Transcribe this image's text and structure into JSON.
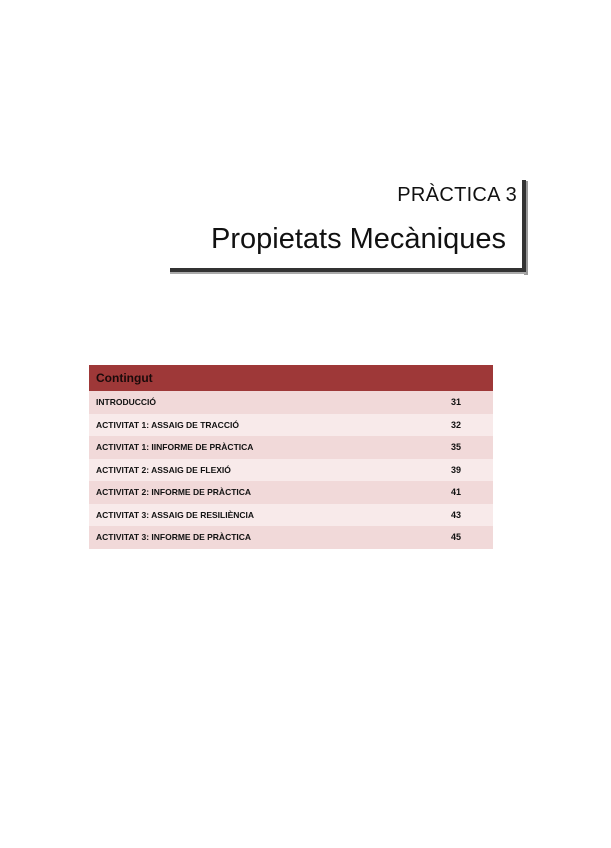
{
  "header": {
    "subtitle": "PRÀCTICA 3",
    "title": "Propietats Mecàniques"
  },
  "toc": {
    "heading": "Contingut",
    "entries": [
      {
        "label": "INTRODUCCIÓ",
        "page": "31"
      },
      {
        "label": "ACTIVITAT 1: ASSAIG DE TRACCIÓ",
        "page": "32"
      },
      {
        "label": "ACTIVITAT 1: IINFORME DE PRÀCTICA",
        "page": "35"
      },
      {
        "label": "ACTIVITAT 2: ASSAIG DE FLEXIÓ",
        "page": "39"
      },
      {
        "label": "ACTIVITAT 2: INFORME DE PRÀCTICA",
        "page": "41"
      },
      {
        "label": "ACTIVITAT 3: ASSAIG DE RESILIÈNCIA",
        "page": "43"
      },
      {
        "label": "ACTIVITAT 3: INFORME DE PRÀCTICA",
        "page": "45"
      }
    ]
  },
  "colors": {
    "header_bg": "#9e3838",
    "row_dark": "#f1d9d9",
    "row_light": "#f8eaea"
  }
}
